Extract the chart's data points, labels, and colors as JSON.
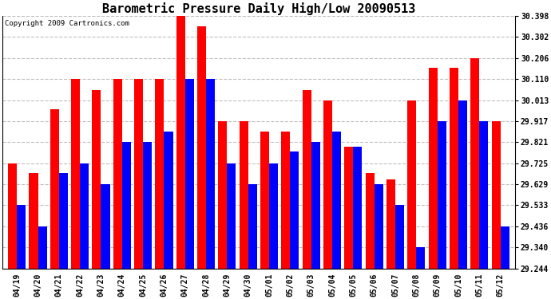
{
  "title": "Barometric Pressure Daily High/Low 20090513",
  "copyright": "Copyright 2009 Cartronics.com",
  "labels": [
    "04/19",
    "04/20",
    "04/21",
    "04/22",
    "04/23",
    "04/24",
    "04/25",
    "04/26",
    "04/27",
    "04/28",
    "04/29",
    "04/30",
    "05/01",
    "05/02",
    "05/03",
    "05/04",
    "05/05",
    "05/06",
    "05/07",
    "05/08",
    "05/09",
    "05/10",
    "05/11",
    "05/12"
  ],
  "highs": [
    29.725,
    29.68,
    29.97,
    30.11,
    30.06,
    30.11,
    30.11,
    30.11,
    30.398,
    30.35,
    29.917,
    29.917,
    29.87,
    29.87,
    30.06,
    30.013,
    29.8,
    29.68,
    29.65,
    30.013,
    30.16,
    30.16,
    30.206,
    29.917
  ],
  "lows": [
    29.533,
    29.436,
    29.68,
    29.725,
    29.629,
    29.821,
    29.821,
    29.87,
    30.11,
    30.11,
    29.725,
    29.629,
    29.725,
    29.78,
    29.821,
    29.87,
    29.8,
    29.629,
    29.533,
    29.34,
    29.917,
    30.013,
    29.917,
    29.436
  ],
  "ylim_min": 29.244,
  "ylim_max": 30.398,
  "yticks": [
    29.244,
    29.34,
    29.436,
    29.533,
    29.629,
    29.725,
    29.821,
    29.917,
    30.013,
    30.11,
    30.206,
    30.302,
    30.398
  ],
  "high_color": "#ff0000",
  "low_color": "#0000ff",
  "bg_color": "#ffffff",
  "grid_color": "#c0c0c0",
  "title_fontsize": 11,
  "bar_width": 0.42
}
